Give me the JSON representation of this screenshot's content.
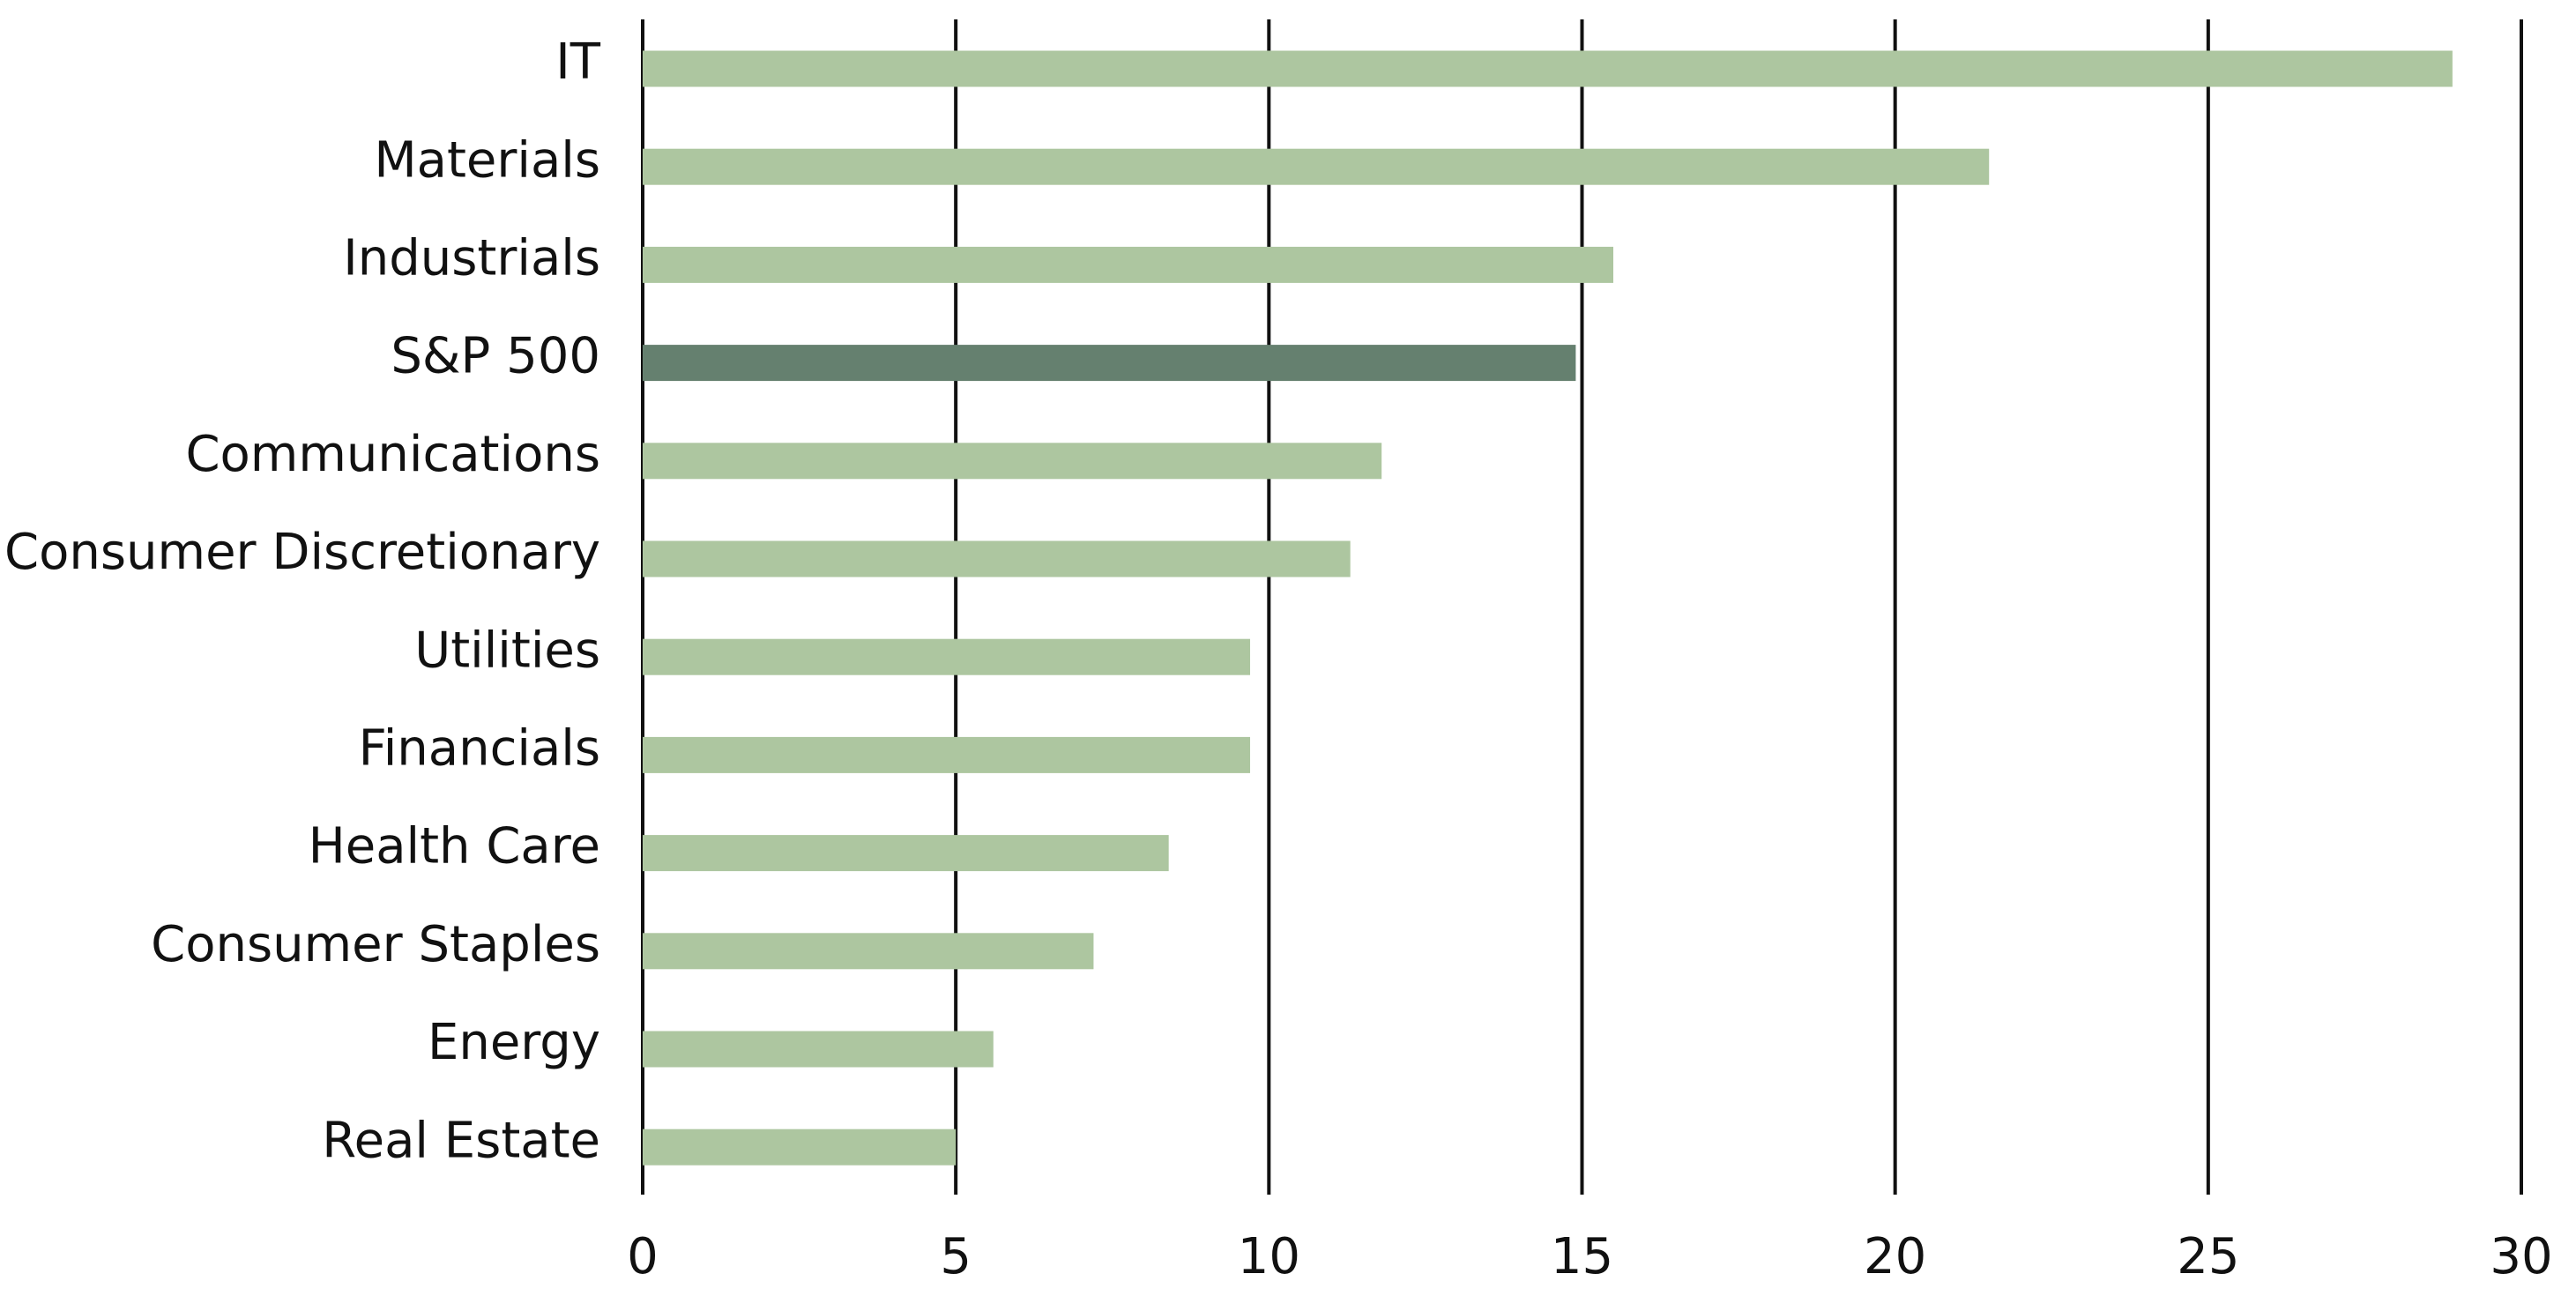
{
  "chart_data": {
    "type": "barh",
    "categories": [
      "IT",
      "Materials",
      "Industrials",
      "S&P 500",
      "Communications",
      "Consumer Discretionary",
      "Utilities",
      "Financials",
      "Health Care",
      "Consumer Staples",
      "Energy",
      "Real Estate"
    ],
    "values": [
      28.9,
      21.5,
      15.5,
      14.9,
      11.8,
      11.3,
      9.7,
      9.7,
      8.4,
      7.2,
      5.6,
      5.0
    ],
    "colors": [
      "#adc6a0",
      "#adc6a0",
      "#adc6a0",
      "#65806f",
      "#adc6a0",
      "#adc6a0",
      "#adc6a0",
      "#adc6a0",
      "#adc6a0",
      "#adc6a0",
      "#adc6a0",
      "#adc6a0"
    ],
    "xlim": [
      0,
      30
    ],
    "xticks": [
      0,
      5,
      10,
      15,
      20,
      25,
      30
    ],
    "grid": true
  }
}
